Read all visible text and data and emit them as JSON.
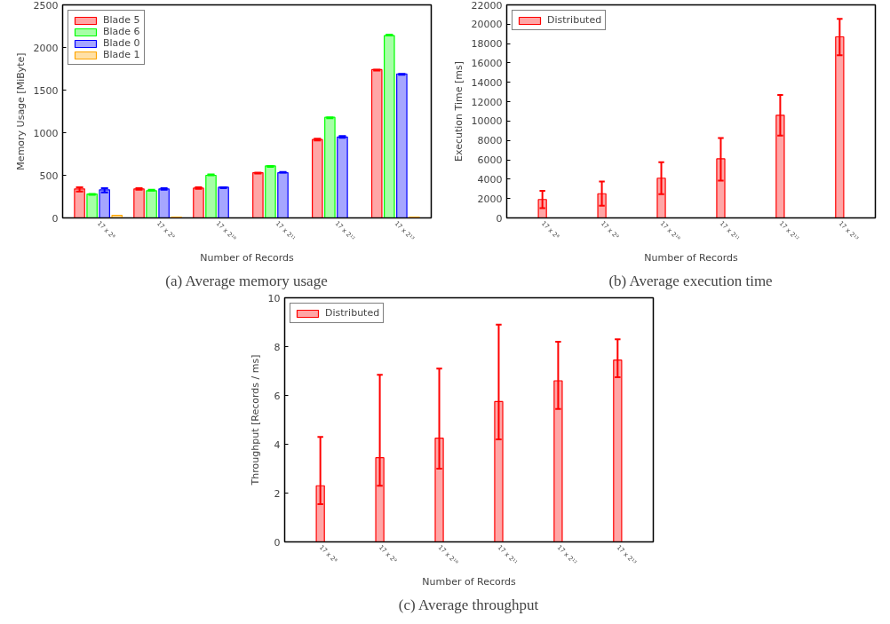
{
  "chart_data": [
    {
      "type": "bar",
      "title": "(a) Average memory usage",
      "xlabel": "Number of Records",
      "ylabel": "Memory Usage [MiByte]",
      "categories": [
        "17 x 2⁸",
        "17 x 2⁹",
        "17 x 2¹⁰",
        "17 x 2¹¹",
        "17 x 2¹²",
        "17 x 2¹³"
      ],
      "series": [
        {
          "name": "Blade 5",
          "color": "#ff0000",
          "values": [
            340,
            340,
            350,
            530,
            920,
            1740
          ],
          "errors": [
            [
              310,
              360
            ],
            [
              330,
              350
            ],
            [
              340,
              360
            ],
            [
              520,
              530
            ],
            [
              910,
              930
            ],
            [
              1730,
              1740
            ]
          ]
        },
        {
          "name": "Blade 6",
          "color": "#00ff00",
          "values": [
            280,
            320,
            500,
            610,
            1180,
            2140
          ],
          "errors": [
            [
              270,
              280
            ],
            [
              320,
              330
            ],
            [
              500,
              510
            ],
            [
              600,
              610
            ],
            [
              1170,
              1180
            ],
            [
              2140,
              2150
            ]
          ]
        },
        {
          "name": "Blade 0",
          "color": "#0000ff",
          "values": [
            330,
            340,
            360,
            530,
            950,
            1690
          ],
          "errors": [
            [
              300,
              350
            ],
            [
              330,
              350
            ],
            [
              350,
              360
            ],
            [
              530,
              540
            ],
            [
              940,
              960
            ],
            [
              1680,
              1690
            ]
          ]
        },
        {
          "name": "Blade 1",
          "color": "#ffa500",
          "values": [
            30,
            10,
            0,
            0,
            0,
            10
          ]
        }
      ],
      "ylim": [
        0,
        2500
      ],
      "yticks": [
        0,
        500,
        1000,
        1500,
        2000,
        2500
      ],
      "legend": "top left",
      "grid": false
    },
    {
      "type": "bar",
      "title": "(b) Average execution time",
      "xlabel": "Number of Records",
      "ylabel": "Execution Time [ms]",
      "categories": [
        "17 x 2⁸",
        "17 x 2⁹",
        "17 x 2¹⁰",
        "17 x 2¹¹",
        "17 x 2¹²",
        "17 x 2¹³"
      ],
      "series": [
        {
          "name": "Distributed",
          "color": "#ff0000",
          "values": [
            1900,
            2500,
            4100,
            6100,
            10600,
            18700
          ],
          "errors": [
            [
              1000,
              2800
            ],
            [
              1250,
              3750
            ],
            [
              2450,
              5750
            ],
            [
              3850,
              8250
            ],
            [
              8500,
              12700
            ],
            [
              16800,
              20550
            ]
          ]
        }
      ],
      "ylim": [
        0,
        22000
      ],
      "yticks": [
        0,
        2000,
        4000,
        6000,
        8000,
        10000,
        12000,
        14000,
        16000,
        18000,
        20000,
        22000
      ],
      "legend": "top left",
      "grid": false
    },
    {
      "type": "bar",
      "title": "(c) Average throughput",
      "xlabel": "Number of Records",
      "ylabel": "Throughput [Records / ms]",
      "categories": [
        "17 x 2⁸",
        "17 x 2⁹",
        "17 x 2¹⁰",
        "17 x 2¹¹",
        "17 x 2¹²",
        "17 x 2¹³"
      ],
      "series": [
        {
          "name": "Distributed",
          "color": "#ff0000",
          "values": [
            2.3,
            3.45,
            4.25,
            5.75,
            6.6,
            7.45
          ],
          "errors": [
            [
              1.55,
              4.3
            ],
            [
              2.3,
              6.85
            ],
            [
              3.0,
              7.1
            ],
            [
              4.2,
              8.9
            ],
            [
              5.45,
              8.2
            ],
            [
              6.75,
              8.3
            ]
          ]
        }
      ],
      "ylim": [
        0,
        10
      ],
      "yticks": [
        0,
        2,
        4,
        6,
        8,
        10
      ],
      "legend": "top left",
      "grid": false
    }
  ]
}
